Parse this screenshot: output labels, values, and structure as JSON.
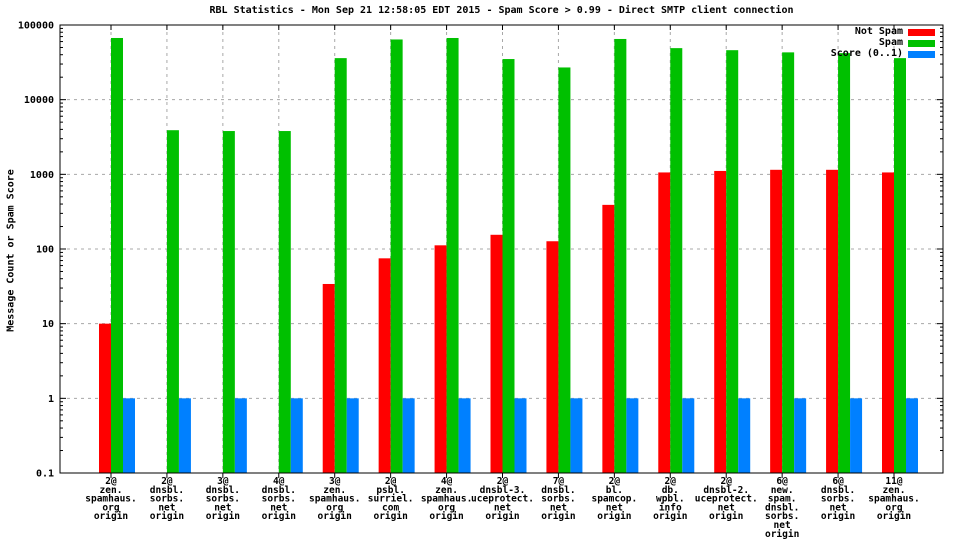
{
  "chart": {
    "title": "RBL Statistics - Mon Sep 21 12:58:05 EDT 2015 - Spam Score > 0.99 - Direct SMTP client connection",
    "ylabel": "Message Count or Spam Score"
  },
  "chart_data": {
    "type": "bar",
    "subtype": "grouped",
    "yscale": "log",
    "ylim": [
      0.1,
      100000
    ],
    "ytick_labels": [
      "100000",
      "10000",
      "1000",
      "100",
      "10",
      "1",
      "0.1"
    ],
    "ytick_values": [
      100000,
      10000,
      1000,
      100,
      10,
      1,
      0.1
    ],
    "grid": true,
    "legend_position": "top-right",
    "title": "RBL Statistics - Mon Sep 21 12:58:05 EDT 2015 - Spam Score > 0.99 - Direct SMTP client connection",
    "xlabel": "",
    "ylabel": "Message Count or Spam Score",
    "categories": [
      [
        "2@",
        "zen.",
        "spamhaus.",
        "org",
        "origin"
      ],
      [
        "2@",
        "dnsbl.",
        "sorbs.",
        "net",
        "origin"
      ],
      [
        "3@",
        "dnsbl.",
        "sorbs.",
        "net",
        "origin"
      ],
      [
        "4@",
        "dnsbl.",
        "sorbs.",
        "net",
        "origin"
      ],
      [
        "3@",
        "zen.",
        "spamhaus.",
        "org",
        "origin"
      ],
      [
        "2@",
        "psbl.",
        "surriel.",
        "com",
        "origin"
      ],
      [
        "4@",
        "zen.",
        "spamhaus.",
        "org",
        "origin"
      ],
      [
        "2@",
        "dnsbl-3.",
        "uceprotect.",
        "net",
        "origin"
      ],
      [
        "7@",
        "dnsbl.",
        "sorbs.",
        "net",
        "origin"
      ],
      [
        "2@",
        "bl.",
        "spamcop.",
        "net",
        "origin"
      ],
      [
        "2@",
        "db.",
        "wpbl.",
        "info",
        "origin"
      ],
      [
        "2@",
        "dnsbl-2.",
        "uceprotect.",
        "net",
        "origin"
      ],
      [
        "6@",
        "new.",
        "spam.",
        "dnsbl.",
        "sorbs.",
        "net",
        "origin"
      ],
      [
        "6@",
        "dnsbl.",
        "sorbs.",
        "net",
        "origin"
      ],
      [
        "11@",
        "zen.",
        "spamhaus.",
        "org",
        "origin"
      ]
    ],
    "series": [
      {
        "name": "Not Spam",
        "color": "#ff0000",
        "values": [
          10,
          null,
          null,
          null,
          34,
          75,
          112,
          155,
          127,
          390,
          1060,
          1110,
          1150,
          1150,
          1060
        ]
      },
      {
        "name": "Spam",
        "color": "#00c000",
        "values": [
          67000,
          3900,
          3800,
          3800,
          36000,
          64000,
          67000,
          35000,
          27000,
          65000,
          49000,
          46000,
          43000,
          42000,
          36000
        ]
      },
      {
        "name": "Score (0..1)",
        "color": "#0080ff",
        "values": [
          1,
          1,
          1,
          1,
          1,
          1,
          1,
          1,
          1,
          1,
          1,
          1,
          1,
          1,
          1
        ]
      }
    ]
  }
}
